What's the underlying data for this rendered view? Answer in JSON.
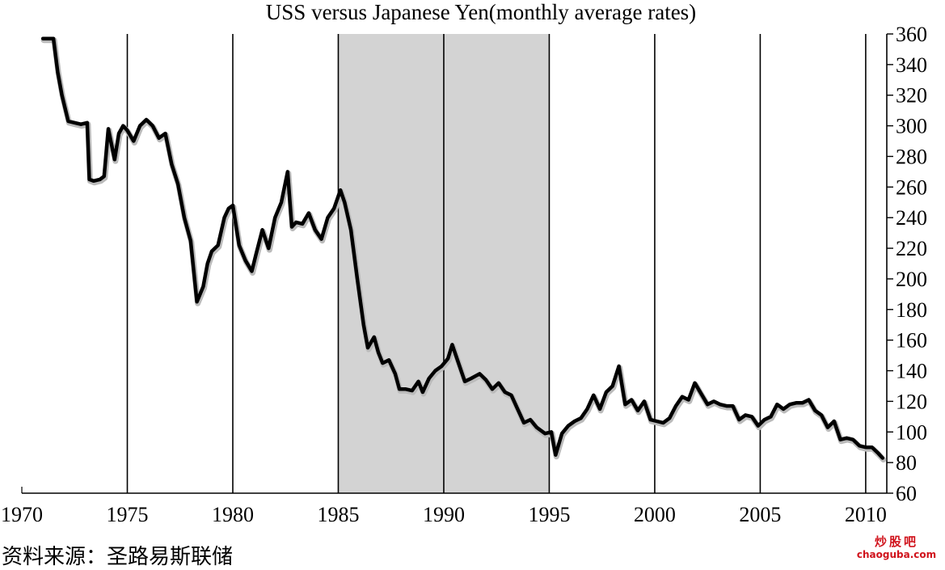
{
  "source_note": "资料来源：圣路易斯联储",
  "watermark": {
    "name": "炒股吧",
    "site": "chaoguba.com"
  },
  "colors": {
    "line": "#000000",
    "shade": "#d3d3d3",
    "watermark": "#d0121b"
  },
  "chart_data": {
    "type": "line",
    "title": "USS versus Japanese Yen(monthly average rates)",
    "xlabel": "",
    "ylabel": "",
    "xlim": [
      1970,
      2011
    ],
    "ylim": [
      60,
      360
    ],
    "y_axis_side": "right",
    "x_ticks": [
      1970,
      1975,
      1980,
      1985,
      1990,
      1995,
      2000,
      2005,
      2010
    ],
    "y_ticks": [
      60,
      80,
      100,
      120,
      140,
      160,
      180,
      200,
      220,
      240,
      260,
      280,
      300,
      320,
      340,
      360
    ],
    "vertical_lines": [
      1975,
      1980,
      1985,
      1990,
      1995,
      2000,
      2005,
      2010
    ],
    "shaded_range": [
      1985,
      1995
    ],
    "grid": false,
    "series": [
      {
        "x": [
          1971.0,
          1971.5,
          1971.7,
          1971.9,
          1972.2,
          1972.5,
          1972.8,
          1973.1,
          1973.2,
          1973.4,
          1973.7,
          1973.9,
          1974.1,
          1974.4,
          1974.6,
          1974.8,
          1975.0,
          1975.3,
          1975.6,
          1975.9,
          1976.2,
          1976.5,
          1976.8,
          1977.1,
          1977.4,
          1977.7,
          1978.0,
          1978.3,
          1978.6,
          1978.8,
          1979.0,
          1979.3,
          1979.6,
          1979.8,
          1980.0,
          1980.3,
          1980.6,
          1980.9,
          1981.1,
          1981.4,
          1981.7,
          1982.0,
          1982.3,
          1982.6,
          1982.8,
          1983.0,
          1983.3,
          1983.6,
          1983.9,
          1984.2,
          1984.5,
          1984.8,
          1985.1,
          1985.3,
          1985.6,
          1985.9,
          1986.2,
          1986.4,
          1986.7,
          1986.9,
          1987.1,
          1987.4,
          1987.7,
          1987.9,
          1988.2,
          1988.5,
          1988.8,
          1989.0,
          1989.3,
          1989.6,
          1989.9,
          1990.2,
          1990.4,
          1990.7,
          1991.0,
          1991.3,
          1991.7,
          1992.0,
          1992.3,
          1992.6,
          1992.9,
          1993.2,
          1993.5,
          1993.8,
          1994.1,
          1994.4,
          1994.8,
          1995.1,
          1995.3,
          1995.6,
          1995.9,
          1996.2,
          1996.5,
          1996.8,
          1997.1,
          1997.4,
          1997.7,
          1998.0,
          1998.3,
          1998.6,
          1998.9,
          1999.2,
          1999.5,
          1999.8,
          2000.1,
          2000.4,
          2000.7,
          2001.0,
          2001.3,
          2001.6,
          2001.9,
          2002.2,
          2002.5,
          2002.8,
          2003.1,
          2003.4,
          2003.7,
          2004.0,
          2004.3,
          2004.6,
          2004.9,
          2005.2,
          2005.5,
          2005.8,
          2006.1,
          2006.4,
          2006.7,
          2007.0,
          2007.3,
          2007.6,
          2007.9,
          2008.2,
          2008.5,
          2008.8,
          2009.1,
          2009.4,
          2009.7,
          2010.0,
          2010.3,
          2010.6,
          2010.8
        ],
        "values": [
          357,
          357,
          335,
          320,
          303,
          302,
          301,
          302,
          265,
          264,
          265,
          267,
          298,
          278,
          295,
          300,
          297,
          290,
          300,
          304,
          300,
          292,
          295,
          275,
          262,
          240,
          225,
          185,
          195,
          210,
          218,
          222,
          240,
          246,
          248,
          222,
          212,
          205,
          216,
          232,
          220,
          240,
          250,
          270,
          234,
          237,
          236,
          243,
          232,
          226,
          240,
          246,
          258,
          250,
          232,
          200,
          170,
          155,
          162,
          152,
          145,
          147,
          138,
          128,
          128,
          127,
          133,
          126,
          135,
          140,
          143,
          148,
          157,
          145,
          133,
          135,
          138,
          134,
          128,
          132,
          126,
          124,
          115,
          106,
          108,
          103,
          99,
          100,
          85,
          99,
          104,
          107,
          109,
          115,
          124,
          115,
          126,
          130,
          143,
          118,
          121,
          114,
          120,
          108,
          107,
          106,
          109,
          117,
          123,
          121,
          132,
          125,
          118,
          120,
          118,
          117,
          117,
          108,
          111,
          110,
          104,
          108,
          110,
          118,
          115,
          118,
          119,
          119,
          121,
          114,
          111,
          103,
          107,
          95,
          96,
          95,
          91,
          90,
          90,
          86,
          83
        ]
      }
    ]
  }
}
